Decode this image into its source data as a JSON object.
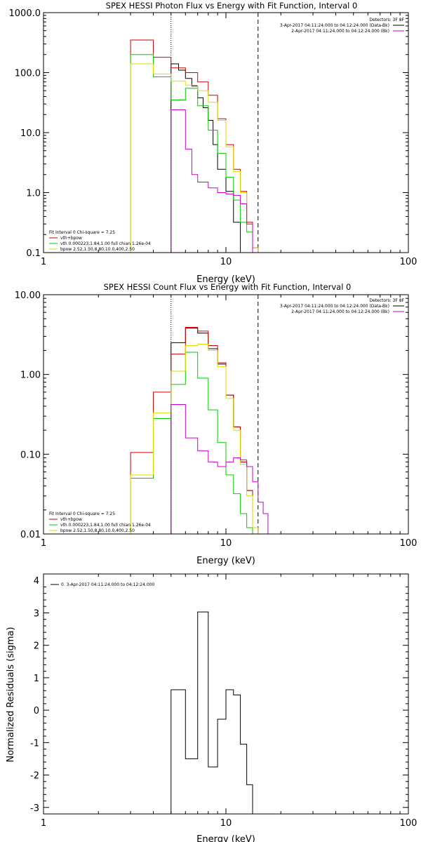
{
  "colors": {
    "data": "#000000",
    "background": "#cc0000",
    "fit_total": "#dddd00",
    "vth": "#00cc00",
    "bpow": "#cc00cc",
    "fit_region": "#000000"
  },
  "chart_data": [
    {
      "type": "line",
      "panel": "photon_flux",
      "title": "SPEX HESSI Photon Flux vs Energy with Fit Function, Interval 0",
      "xlabel": "Energy (keV)",
      "ylabel": "",
      "xscale": "log",
      "yscale": "log",
      "xlim": [
        1,
        100
      ],
      "ylim": [
        0.1,
        1000
      ],
      "x_ticks": [
        "1",
        "10",
        "100"
      ],
      "y_ticks": [
        "0.1",
        "1.0",
        "10.0",
        "100.0",
        "1000.0"
      ],
      "vlines": [
        {
          "x": 5.0,
          "style": "dotted"
        },
        {
          "x": 15.0,
          "style": "dashed"
        }
      ],
      "legend_upper": {
        "header": "Detectors: 3F 8F",
        "items": [
          "3-Apr-2017 04:11:24.000 to 04:12:24.000 (Data-Bk)",
          "2-Apr-2017 04:11:24.000 to 04:12:24.000 (Bk)"
        ]
      },
      "legend_lower": {
        "header": "Fit Interval 0   Chi-square = 7.25",
        "items": [
          "vth+bpow",
          "vth 0.000223,1.84,1.00  full chian 1.26e-04",
          "bpow 2.52,1.50,8.80,10.0,400,2.50"
        ]
      },
      "bin_edges": [
        3.0,
        3.5,
        4.0,
        4.5,
        5.0,
        5.5,
        6.0,
        6.5,
        7.0,
        7.5,
        8.0,
        8.5,
        9.0,
        10.0,
        11.0,
        12.0,
        13.0,
        14.0,
        15.0,
        16.0,
        17.0
      ],
      "series": [
        {
          "color": "#000000",
          "x0": 5.0,
          "values": [
            140,
            110,
            80,
            60,
            38,
            26,
            16,
            6.3,
            2.45,
            1.05,
            0.32
          ]
        },
        {
          "color": "#cc0000",
          "x0": 3.0,
          "values": [
            350,
            350,
            180,
            180,
            120,
            120,
            100,
            100,
            70,
            70,
            42,
            42,
            17,
            6.3,
            2.45,
            1.05,
            0.32,
            0.12
          ]
        },
        {
          "color": "#00cc00",
          "x0": 3.0,
          "values": [
            200,
            200,
            85,
            85,
            35,
            35,
            55,
            55,
            28,
            28,
            11,
            11,
            4.5,
            1.8,
            0.75,
            0.32,
            0.22
          ]
        },
        {
          "color": "#dddd00",
          "x0": 3.0,
          "values": [
            140,
            140,
            95,
            95,
            72,
            72,
            62,
            62,
            50,
            50,
            32,
            32,
            16,
            5.8,
            2.25,
            1.0,
            0.3,
            0.12
          ]
        },
        {
          "color": "#cc00cc",
          "x0": 5.0,
          "values": [
            24,
            24,
            5.3,
            2.0,
            1.5,
            1.5,
            1.2,
            1.2,
            1.0,
            0.95,
            0.9,
            0.65,
            0.3,
            0.1
          ]
        }
      ]
    },
    {
      "type": "line",
      "panel": "count_flux",
      "title": "SPEX HESSI Count Flux vs Energy with Fit Function, Interval 0",
      "xlabel": "Energy (keV)",
      "ylabel": "",
      "xscale": "log",
      "yscale": "log",
      "xlim": [
        1,
        100
      ],
      "ylim": [
        0.01,
        10
      ],
      "x_ticks": [
        "1",
        "10",
        "100"
      ],
      "y_ticks": [
        "0.01",
        "0.10",
        "1.00",
        "10.00"
      ],
      "vlines": [
        {
          "x": 5.0,
          "style": "dotted"
        },
        {
          "x": 15.0,
          "style": "dashed"
        }
      ],
      "legend_upper": {
        "header": "Detectors: 3F 8F",
        "items": [
          "3-Apr-2017 04:11:24.000 to 04:12:24.000 (Data-Bk)",
          "2-Apr-2017 04:11:24.000 to 04:12:24.000 (Bk)"
        ]
      },
      "legend_lower": {
        "header": "Fit Interval 0   Chi-square = 7.25",
        "items": [
          "vth+bpow",
          "vth 0.000223,1.84,1.00  full chian 1.26e-04",
          "bpow 2.52,1.50,8.80,10.0,400,2.50"
        ]
      },
      "bin_edges": [
        3.0,
        3.5,
        4.0,
        4.5,
        5.0,
        5.5,
        6.0,
        6.5,
        7.0,
        7.5,
        8.0,
        8.5,
        9.0,
        10.0,
        11.0,
        12.0,
        13.0,
        14.0,
        15.0,
        16.0,
        17.0
      ],
      "series": [
        {
          "color": "#000000",
          "x0": 5.0,
          "values": [
            2.5,
            2.5,
            3.8,
            3.8,
            3.3,
            3.3,
            2.1,
            2.1,
            1.35,
            0.55,
            0.22,
            0.08,
            0.035
          ]
        },
        {
          "color": "#cc0000",
          "x0": 3.0,
          "values": [
            0.105,
            0.105,
            0.6,
            0.6,
            1.8,
            1.8,
            3.9,
            3.9,
            3.5,
            3.5,
            2.3,
            2.3,
            1.4,
            0.55,
            0.22,
            0.08,
            0.035,
            0.012
          ]
        },
        {
          "color": "#00cc00",
          "x0": 3.0,
          "values": [
            0.05,
            0.05,
            0.28,
            0.28,
            0.75,
            0.75,
            1.9,
            1.9,
            0.9,
            0.9,
            0.36,
            0.36,
            0.14,
            0.055,
            0.032,
            0.018,
            0.012
          ]
        },
        {
          "color": "#dddd00",
          "x0": 3.0,
          "values": [
            0.055,
            0.055,
            0.33,
            0.33,
            1.1,
            1.1,
            2.3,
            2.3,
            2.4,
            2.4,
            2.0,
            2.0,
            1.25,
            0.5,
            0.2,
            0.075,
            0.03,
            0.012
          ]
        },
        {
          "color": "#cc00cc",
          "x0": 5.0,
          "values": [
            0.42,
            0.42,
            0.16,
            0.16,
            0.11,
            0.11,
            0.08,
            0.08,
            0.07,
            0.08,
            0.09,
            0.085,
            0.07,
            0.045,
            0.025,
            0.018
          ]
        }
      ]
    },
    {
      "type": "line",
      "panel": "residuals",
      "title": "",
      "xlabel": "Energy (keV)",
      "ylabel": "Normalized Residuals (sigma)",
      "xscale": "log",
      "yscale": "linear",
      "xlim": [
        1,
        100
      ],
      "ylim": [
        -3.2,
        4.2
      ],
      "x_ticks": [
        "1",
        "10",
        "100"
      ],
      "y_ticks": [
        "-3",
        "-2",
        "-1",
        "0",
        "1",
        "2",
        "3",
        "4"
      ],
      "legend": "0.  3-Apr-2017 04:11:24.000 to 04:12:24.000",
      "series": [
        {
          "color": "#000000",
          "bin_edges": [
            5.0,
            6.0,
            7.0,
            8.0,
            9.0,
            10.0,
            11.0,
            12.0,
            13.0,
            14.0,
            15.0
          ],
          "values": [
            0.63,
            -1.5,
            3.03,
            -1.75,
            -0.28,
            0.63,
            0.47,
            -1.05,
            -2.3,
            -3.2
          ]
        }
      ]
    }
  ]
}
